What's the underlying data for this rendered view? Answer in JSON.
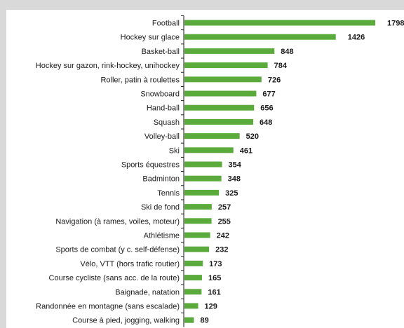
{
  "chart_data": {
    "type": "bar",
    "orientation": "horizontal",
    "categories": [
      "Football",
      "Hockey sur glace",
      "Basket-ball",
      "Hockey sur gazon, rink-hockey, unihockey",
      "Roller, patin à roulettes",
      "Snowboard",
      "Hand-ball",
      "Squash",
      "Volley-ball",
      "Ski",
      "Sports équestres",
      "Badminton",
      "Tennis",
      "Ski de fond",
      "Navigation (à rames, voiles, moteur)",
      "Athlétisme",
      "Sports de combat (y c. self-défense)",
      "Vélo, VTT (hors trafic routier)",
      "Course cycliste (sans acc. de la route)",
      "Baignade, natation",
      "Randonnée en montagne (sans escalade)",
      "Course à pied, jogging, walking"
    ],
    "values": [
      1798,
      1426,
      848,
      784,
      726,
      677,
      656,
      648,
      520,
      461,
      354,
      348,
      325,
      257,
      255,
      242,
      232,
      173,
      165,
      161,
      129,
      89
    ],
    "xlim": [
      0,
      1798
    ],
    "grid": false,
    "legend": "none",
    "colors": {
      "bar": "#5aaa3c",
      "axis": "#1a1a1a",
      "frame": "#d9d9d9"
    }
  }
}
